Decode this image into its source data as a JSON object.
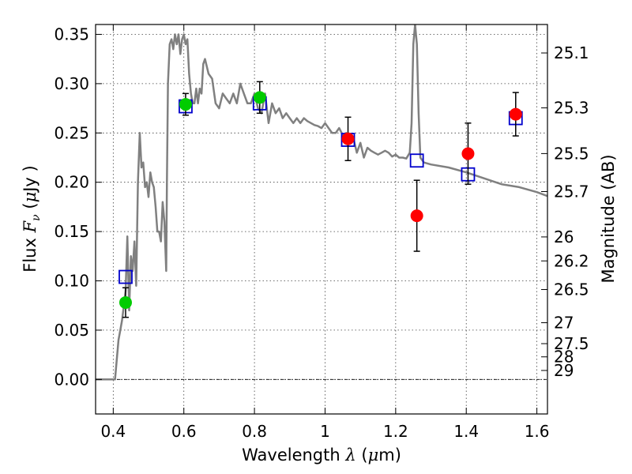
{
  "chart_data": {
    "type": "scatter",
    "xlabel": {
      "prefix": "Wavelength",
      "symbol": "λ",
      "unit_open": "(",
      "unit_mu": "μ",
      "unit_rest": "m)"
    },
    "ylabel": {
      "prefix": "Flux",
      "symbol": "F",
      "subscript": "ν",
      "unit_open": "(",
      "unit_mu": "μ",
      "unit_rest": "Jy )"
    },
    "y2label": "Magnitude (AB)",
    "xlim": [
      0.35,
      1.63
    ],
    "ylim": [
      -0.035,
      0.36
    ],
    "grid": true,
    "x_ticks": [
      {
        "value": 0.4,
        "label": "0.4"
      },
      {
        "value": 0.6,
        "label": "0.6"
      },
      {
        "value": 0.8,
        "label": "0.8"
      },
      {
        "value": 1.0,
        "label": "1"
      },
      {
        "value": 1.2,
        "label": "1.2"
      },
      {
        "value": 1.4,
        "label": "1.4"
      },
      {
        "value": 1.6,
        "label": "1.6"
      }
    ],
    "y_ticks": [
      {
        "value": 0.0,
        "label": "0.00"
      },
      {
        "value": 0.05,
        "label": "0.05"
      },
      {
        "value": 0.1,
        "label": "0.10"
      },
      {
        "value": 0.15,
        "label": "0.15"
      },
      {
        "value": 0.2,
        "label": "0.20"
      },
      {
        "value": 0.25,
        "label": "0.25"
      },
      {
        "value": 0.3,
        "label": "0.30"
      },
      {
        "value": 0.35,
        "label": "0.35"
      }
    ],
    "mag_ticks": [
      {
        "value": 25.1,
        "label": "25.1"
      },
      {
        "value": 25.3,
        "label": "25.3"
      },
      {
        "value": 25.5,
        "label": "25.5"
      },
      {
        "value": 25.7,
        "label": "25.7"
      },
      {
        "value": 26.0,
        "label": "26"
      },
      {
        "value": 26.2,
        "label": "26.2"
      },
      {
        "value": 26.5,
        "label": "26.5"
      },
      {
        "value": 27.0,
        "label": "27"
      },
      {
        "value": 27.5,
        "label": "27.5"
      },
      {
        "value": 28.0,
        "label": "28"
      },
      {
        "value": 29.0,
        "label": "29"
      }
    ],
    "series": [
      {
        "type": "line",
        "color": "#808080",
        "x": [
          0.35,
          0.4,
          0.405,
          0.41,
          0.415,
          0.42,
          0.425,
          0.43,
          0.435,
          0.44,
          0.445,
          0.45,
          0.455,
          0.46,
          0.465,
          0.47,
          0.475,
          0.48,
          0.485,
          0.49,
          0.495,
          0.5,
          0.505,
          0.51,
          0.515,
          0.52,
          0.525,
          0.53,
          0.535,
          0.54,
          0.545,
          0.55,
          0.552,
          0.555,
          0.56,
          0.565,
          0.57,
          0.575,
          0.58,
          0.585,
          0.59,
          0.595,
          0.6,
          0.605,
          0.61,
          0.615,
          0.62,
          0.625,
          0.63,
          0.635,
          0.64,
          0.645,
          0.65,
          0.655,
          0.66,
          0.67,
          0.68,
          0.69,
          0.7,
          0.71,
          0.72,
          0.73,
          0.74,
          0.75,
          0.76,
          0.77,
          0.78,
          0.79,
          0.8,
          0.81,
          0.82,
          0.83,
          0.84,
          0.85,
          0.86,
          0.87,
          0.88,
          0.89,
          0.9,
          0.91,
          0.92,
          0.93,
          0.94,
          0.95,
          0.96,
          0.97,
          0.98,
          0.99,
          1.0,
          1.01,
          1.02,
          1.03,
          1.04,
          1.05,
          1.06,
          1.07,
          1.08,
          1.09,
          1.1,
          1.11,
          1.12,
          1.13,
          1.14,
          1.15,
          1.16,
          1.17,
          1.18,
          1.19,
          1.2,
          1.21,
          1.22,
          1.23,
          1.24,
          1.245,
          1.25,
          1.255,
          1.26,
          1.265,
          1.27,
          1.28,
          1.3,
          1.35,
          1.4,
          1.45,
          1.5,
          1.55,
          1.6,
          1.63
        ],
        "y": [
          0.0,
          0.0,
          0.0,
          0.02,
          0.04,
          0.05,
          0.06,
          0.075,
          0.09,
          0.145,
          0.07,
          0.125,
          0.11,
          0.14,
          0.095,
          0.2,
          0.25,
          0.215,
          0.22,
          0.195,
          0.2,
          0.185,
          0.21,
          0.2,
          0.195,
          0.175,
          0.15,
          0.15,
          0.14,
          0.18,
          0.16,
          0.11,
          0.2,
          0.3,
          0.34,
          0.345,
          0.335,
          0.35,
          0.34,
          0.35,
          0.33,
          0.345,
          0.35,
          0.34,
          0.345,
          0.31,
          0.29,
          0.28,
          0.28,
          0.295,
          0.28,
          0.295,
          0.29,
          0.32,
          0.325,
          0.31,
          0.305,
          0.28,
          0.275,
          0.29,
          0.285,
          0.28,
          0.29,
          0.28,
          0.3,
          0.29,
          0.28,
          0.28,
          0.29,
          0.275,
          0.27,
          0.29,
          0.26,
          0.28,
          0.27,
          0.275,
          0.265,
          0.27,
          0.265,
          0.26,
          0.265,
          0.26,
          0.265,
          0.262,
          0.26,
          0.258,
          0.257,
          0.255,
          0.26,
          0.255,
          0.25,
          0.25,
          0.255,
          0.248,
          0.25,
          0.24,
          0.245,
          0.23,
          0.24,
          0.225,
          0.235,
          0.232,
          0.23,
          0.228,
          0.23,
          0.232,
          0.23,
          0.226,
          0.228,
          0.225,
          0.225,
          0.224,
          0.23,
          0.26,
          0.34,
          0.36,
          0.34,
          0.27,
          0.225,
          0.22,
          0.218,
          0.215,
          0.21,
          0.204,
          0.198,
          0.195,
          0.19,
          0.186
        ]
      },
      {
        "type": "scatter",
        "marker": "square-open",
        "color": "#0000cc",
        "x": [
          0.435,
          0.605,
          0.815,
          1.065,
          1.26,
          1.405,
          1.54
        ],
        "y": [
          0.104,
          0.277,
          0.28,
          0.243,
          0.222,
          0.208,
          0.265
        ]
      },
      {
        "type": "errorbar",
        "marker": "circle",
        "color": "#00cc00",
        "x": [
          0.435,
          0.605,
          0.815
        ],
        "y": [
          0.078,
          0.279,
          0.286
        ],
        "yerr": [
          0.015,
          0.011,
          0.016
        ]
      },
      {
        "type": "errorbar",
        "marker": "circle",
        "color": "#ff0000",
        "x": [
          1.065,
          1.26,
          1.405,
          1.54
        ],
        "y": [
          0.244,
          0.166,
          0.229,
          0.269
        ],
        "yerr": [
          0.022,
          0.036,
          0.031,
          0.022
        ]
      }
    ]
  }
}
